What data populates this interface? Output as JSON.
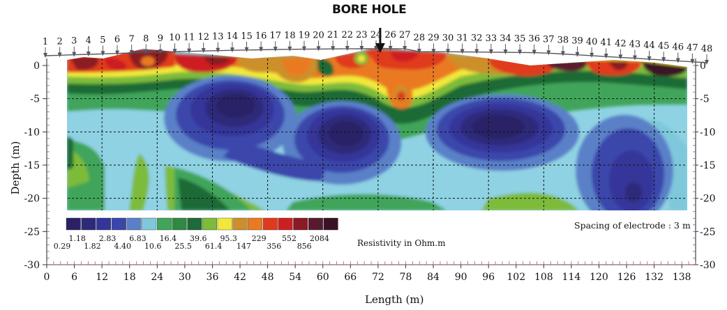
{
  "title": "BORE HOLE",
  "x_axis": {
    "label": "Length (m)",
    "ticks": [
      0,
      6,
      12,
      18,
      24,
      30,
      36,
      42,
      48,
      54,
      60,
      66,
      72,
      78,
      84,
      90,
      96,
      102,
      108,
      114,
      120,
      126,
      132,
      138
    ]
  },
  "y_axis": {
    "label": "Depth (m)",
    "ticks": [
      0,
      -5,
      -10,
      -15,
      -20,
      -25,
      -30
    ]
  },
  "electrodes": {
    "count": 48,
    "labels": [
      "1",
      "2",
      "3",
      "4",
      "5",
      "6",
      "7",
      "8",
      "9",
      "10",
      "11",
      "12",
      "13",
      "14",
      "15",
      "16",
      "17",
      "18",
      "19",
      "20",
      "21",
      "22",
      "23",
      "24",
      "26",
      "27",
      "28",
      "29",
      "30",
      "31",
      "32",
      "33",
      "34",
      "35",
      "36",
      "37",
      "38",
      "39",
      "40",
      "41",
      "42",
      "43",
      "44",
      "45",
      "46",
      "47",
      "48"
    ],
    "spacing_note": "Spacing of electrode : 3 m"
  },
  "borehole_position_m": 72,
  "legend": {
    "title": "Resistivity in Ohm.m",
    "values": [
      "0.29",
      "1.18",
      "1.82",
      "2.83",
      "4.40",
      "6.83",
      "10.6",
      "16.4",
      "25.5",
      "39.6",
      "61.4",
      "95.3",
      "147",
      "229",
      "356",
      "552",
      "856",
      "2084"
    ],
    "colors": [
      "#2b2266",
      "#2e2a7a",
      "#34359a",
      "#3a46ab",
      "#5a80c8",
      "#7fc8dc",
      "#3fa55a",
      "#2e8a42",
      "#1d6b36",
      "#7dbb3a",
      "#f1e83a",
      "#cc8f2c",
      "#ea7a22",
      "#e03a1c",
      "#cd1e21",
      "#8a1a24",
      "#5a1a2e",
      "#3a1226"
    ]
  },
  "chart_data": {
    "type": "heatmap",
    "title": "BORE HOLE",
    "xlabel": "Length (m)",
    "ylabel": "Depth (m)",
    "xlim": [
      0,
      141
    ],
    "ylim": [
      -30,
      0
    ],
    "colorbar_label": "Resistivity in Ohm.m",
    "colorbar_values": [
      0.29,
      1.18,
      1.82,
      2.83,
      4.4,
      6.83,
      10.6,
      16.4,
      25.5,
      39.6,
      61.4,
      95.3,
      147,
      229,
      356,
      552,
      856,
      2084
    ],
    "grid": true,
    "anomalies": [
      {
        "region": "low",
        "center_x": 38,
        "center_y": -8
      },
      {
        "region": "low",
        "center_x": 65,
        "center_y": -12
      },
      {
        "region": "low",
        "center_x": 95,
        "center_y": -10
      },
      {
        "region": "low",
        "center_x": 126,
        "center_y": -16
      },
      {
        "region": "high",
        "center_x": 18,
        "center_y": -1
      },
      {
        "region": "high",
        "center_x": 75,
        "center_y": -4
      }
    ]
  }
}
